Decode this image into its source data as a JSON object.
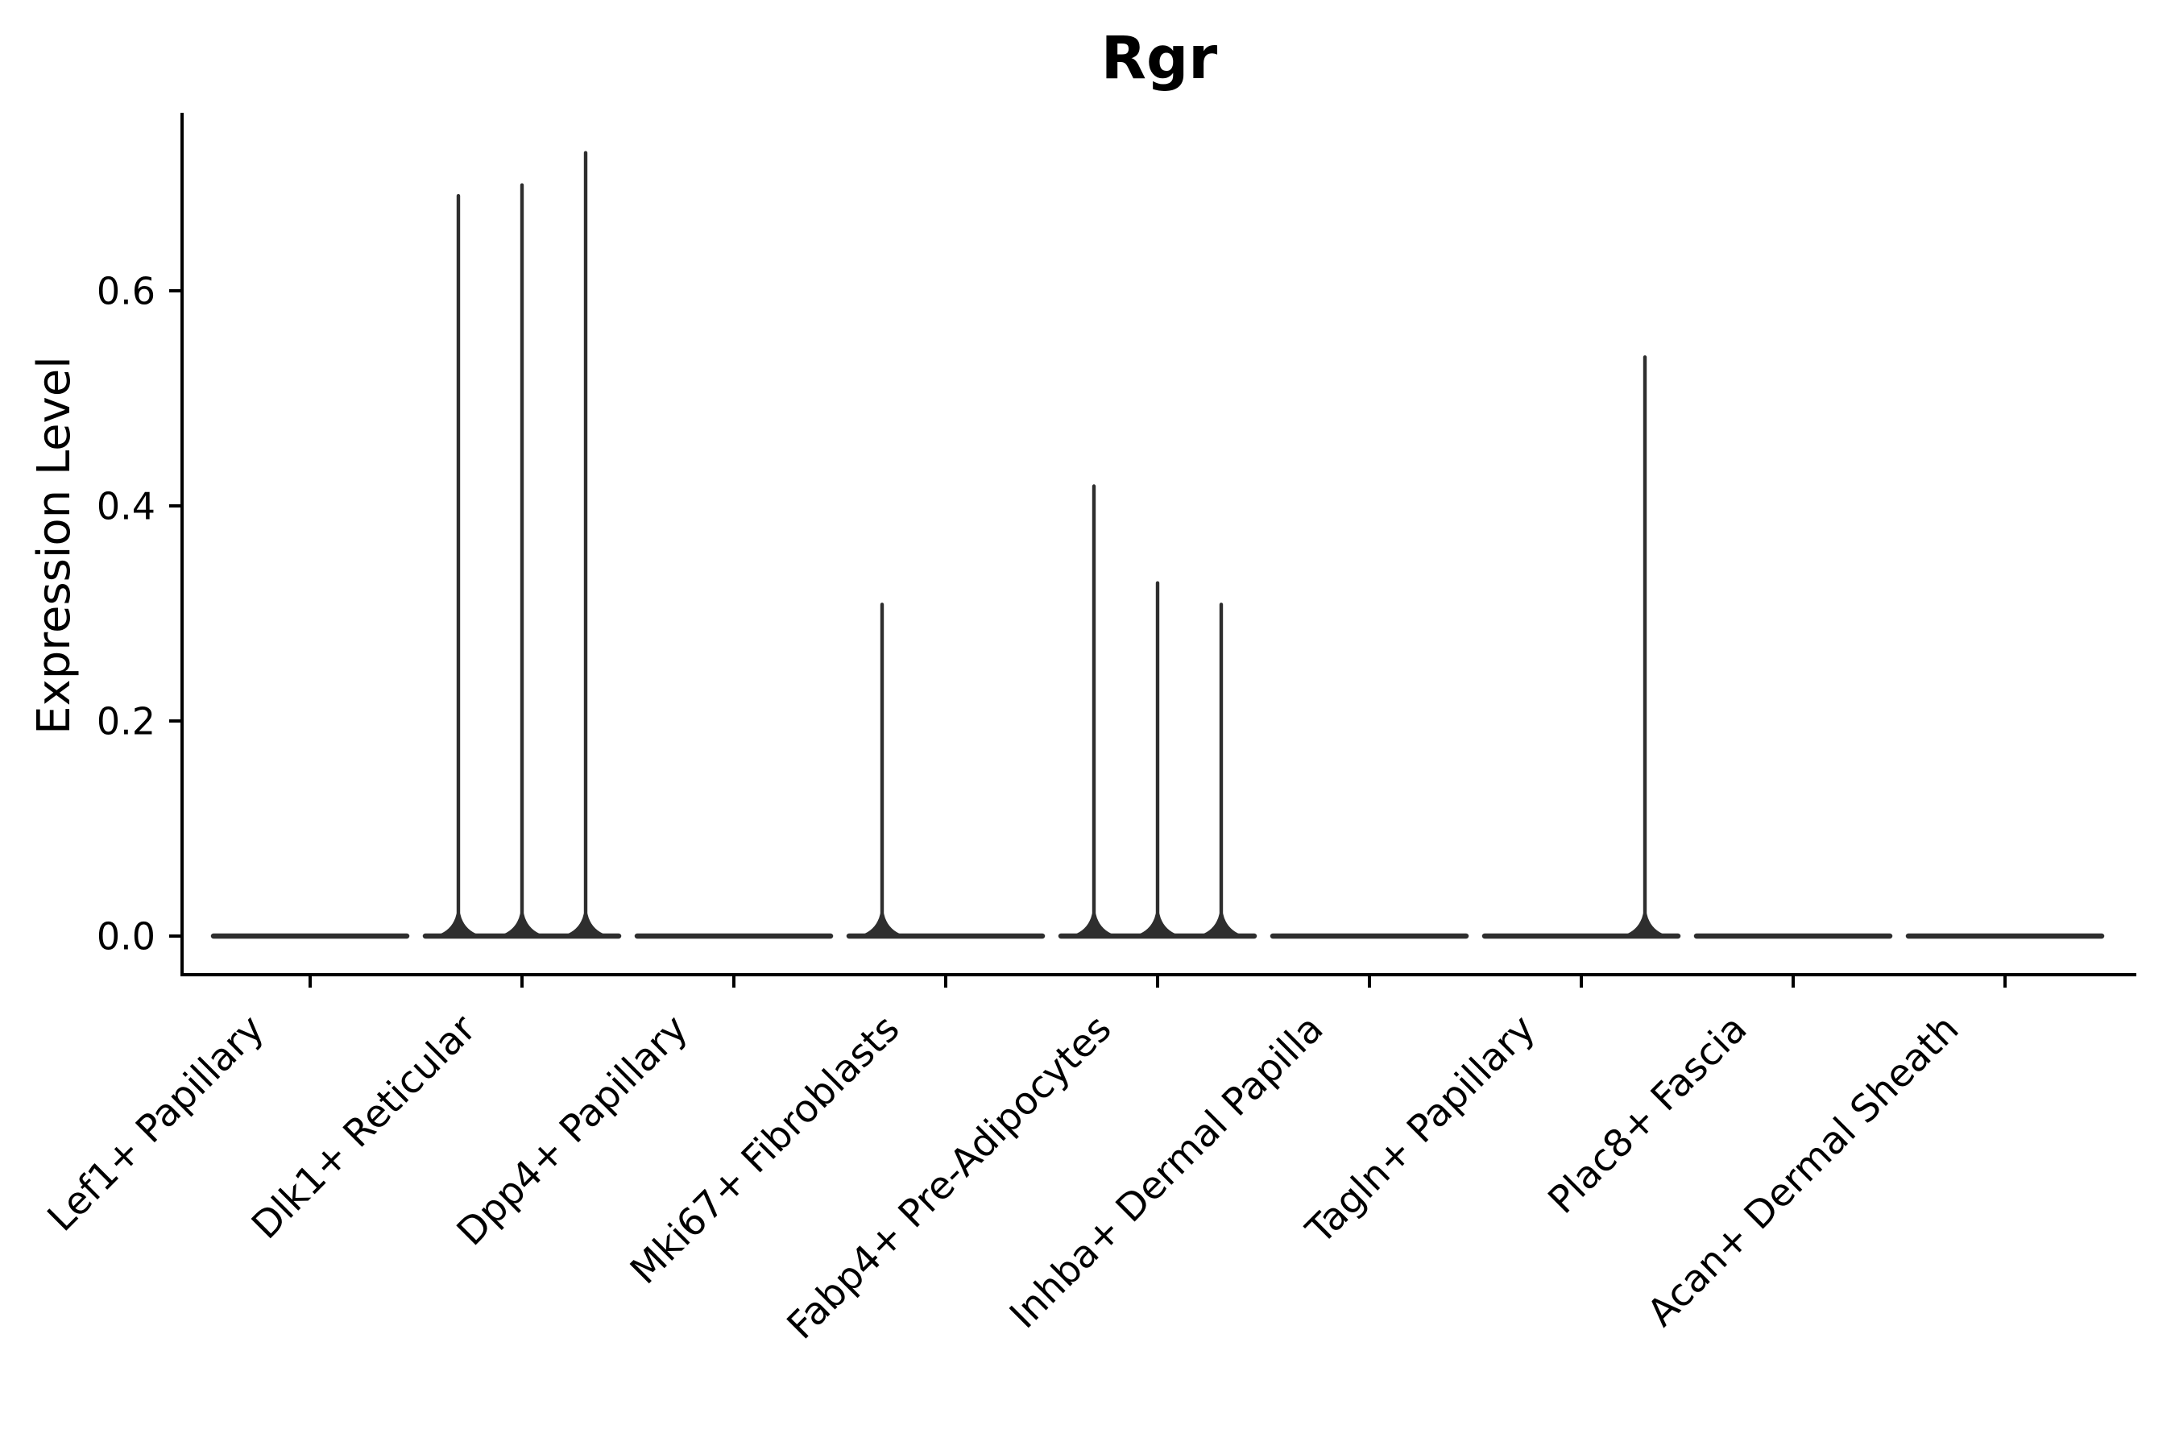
{
  "figure": {
    "background_color": "#ffffff",
    "text_color": "#000000",
    "axis_color": "#000000",
    "violin_color": "#2e2e2e"
  },
  "chart_data": {
    "type": "violin",
    "title": "Rgr",
    "ylabel": "Expression Level",
    "xlabel": "",
    "grid": false,
    "legend": false,
    "x_tick_rotation": 45,
    "ylim": [
      -0.036,
      0.766
    ],
    "y_ticks": {
      "values": [
        0.0,
        0.2,
        0.4,
        0.6
      ],
      "labels": [
        "0.0",
        "0.2",
        "0.4",
        "0.6"
      ]
    },
    "categories": [
      "Lef1+ Papillary",
      "Dlk1+ Reticular",
      "Dpp4+ Papillary",
      "Mki67+ Fibroblasts",
      "Fabp4+ Pre-Adipocytes",
      "Inhba+ Dermal Papilla",
      "Tagln+ Papillary",
      "Plac8+ Fascia",
      "Acan+ Dermal Sheath"
    ],
    "sub_violins_per_category": 3,
    "violins": [
      {
        "category": "Lef1+ Papillary",
        "dense_at_zero": true,
        "spikes": []
      },
      {
        "category": "Dlk1+ Reticular",
        "dense_at_zero": true,
        "spikes": [
          {
            "pos": -1,
            "value": 0.69
          },
          {
            "pos": 0,
            "value": 0.7
          },
          {
            "pos": 1,
            "value": 0.73
          }
        ]
      },
      {
        "category": "Dpp4+ Papillary",
        "dense_at_zero": true,
        "spikes": []
      },
      {
        "category": "Mki67+ Fibroblasts",
        "dense_at_zero": true,
        "spikes": [
          {
            "pos": -1,
            "value": 0.31
          }
        ]
      },
      {
        "category": "Fabp4+ Pre-Adipocytes",
        "dense_at_zero": true,
        "spikes": [
          {
            "pos": -1,
            "value": 0.42
          },
          {
            "pos": 0,
            "value": 0.33
          },
          {
            "pos": 1,
            "value": 0.31
          }
        ]
      },
      {
        "category": "Inhba+ Dermal Papilla",
        "dense_at_zero": true,
        "spikes": []
      },
      {
        "category": "Tagln+ Papillary",
        "dense_at_zero": true,
        "spikes": [
          {
            "pos": 1,
            "value": 0.54
          }
        ]
      },
      {
        "category": "Plac8+ Fascia",
        "dense_at_zero": true,
        "spikes": []
      },
      {
        "category": "Acan+ Dermal Sheath",
        "dense_at_zero": true,
        "spikes": []
      }
    ]
  }
}
